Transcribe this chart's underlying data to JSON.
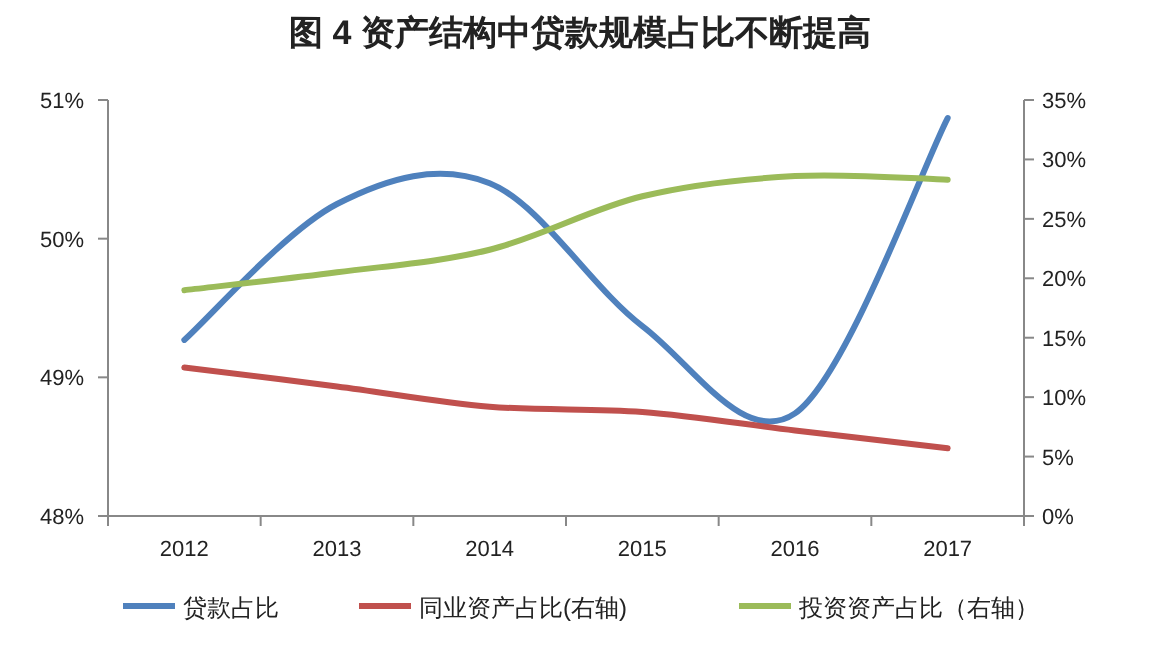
{
  "chart_data": {
    "type": "line",
    "title": "图 4  资产结构中贷款规模占比不断提高",
    "categories": [
      "2012",
      "2013",
      "2014",
      "2015",
      "2016",
      "2017"
    ],
    "series": [
      {
        "name": "贷款占比",
        "color": "#4f81bd",
        "values": [
          49.27,
          50.25,
          50.4,
          49.37,
          48.74,
          50.87
        ]
      },
      {
        "name": "同业资产占比(右轴)",
        "color": "#c0504d",
        "axis": "y2",
        "values": [
          12.5,
          10.9,
          9.2,
          8.75,
          7.2,
          5.7
        ]
      },
      {
        "name": "投资资产占比（右轴）",
        "color": "#9bbb59",
        "axis": "y2",
        "values": [
          19.0,
          20.5,
          22.4,
          26.9,
          28.6,
          28.3
        ]
      }
    ],
    "ylim": [
      48,
      51
    ],
    "yticks": [
      {
        "value": 48,
        "label": "48%"
      },
      {
        "value": 49,
        "label": "49%"
      },
      {
        "value": 50,
        "label": "50%"
      },
      {
        "value": 51,
        "label": "51%"
      }
    ],
    "y2lim": [
      0,
      35
    ],
    "y2ticks": [
      {
        "value": 0,
        "label": "0%"
      },
      {
        "value": 5,
        "label": "5%"
      },
      {
        "value": 10,
        "label": "10%"
      },
      {
        "value": 15,
        "label": "15%"
      },
      {
        "value": 20,
        "label": "20%"
      },
      {
        "value": 25,
        "label": "25%"
      },
      {
        "value": 30,
        "label": "30%"
      },
      {
        "value": 35,
        "label": "35%"
      }
    ],
    "grid": false,
    "legend": "bottom",
    "marker": "none",
    "line_style": "solid"
  }
}
